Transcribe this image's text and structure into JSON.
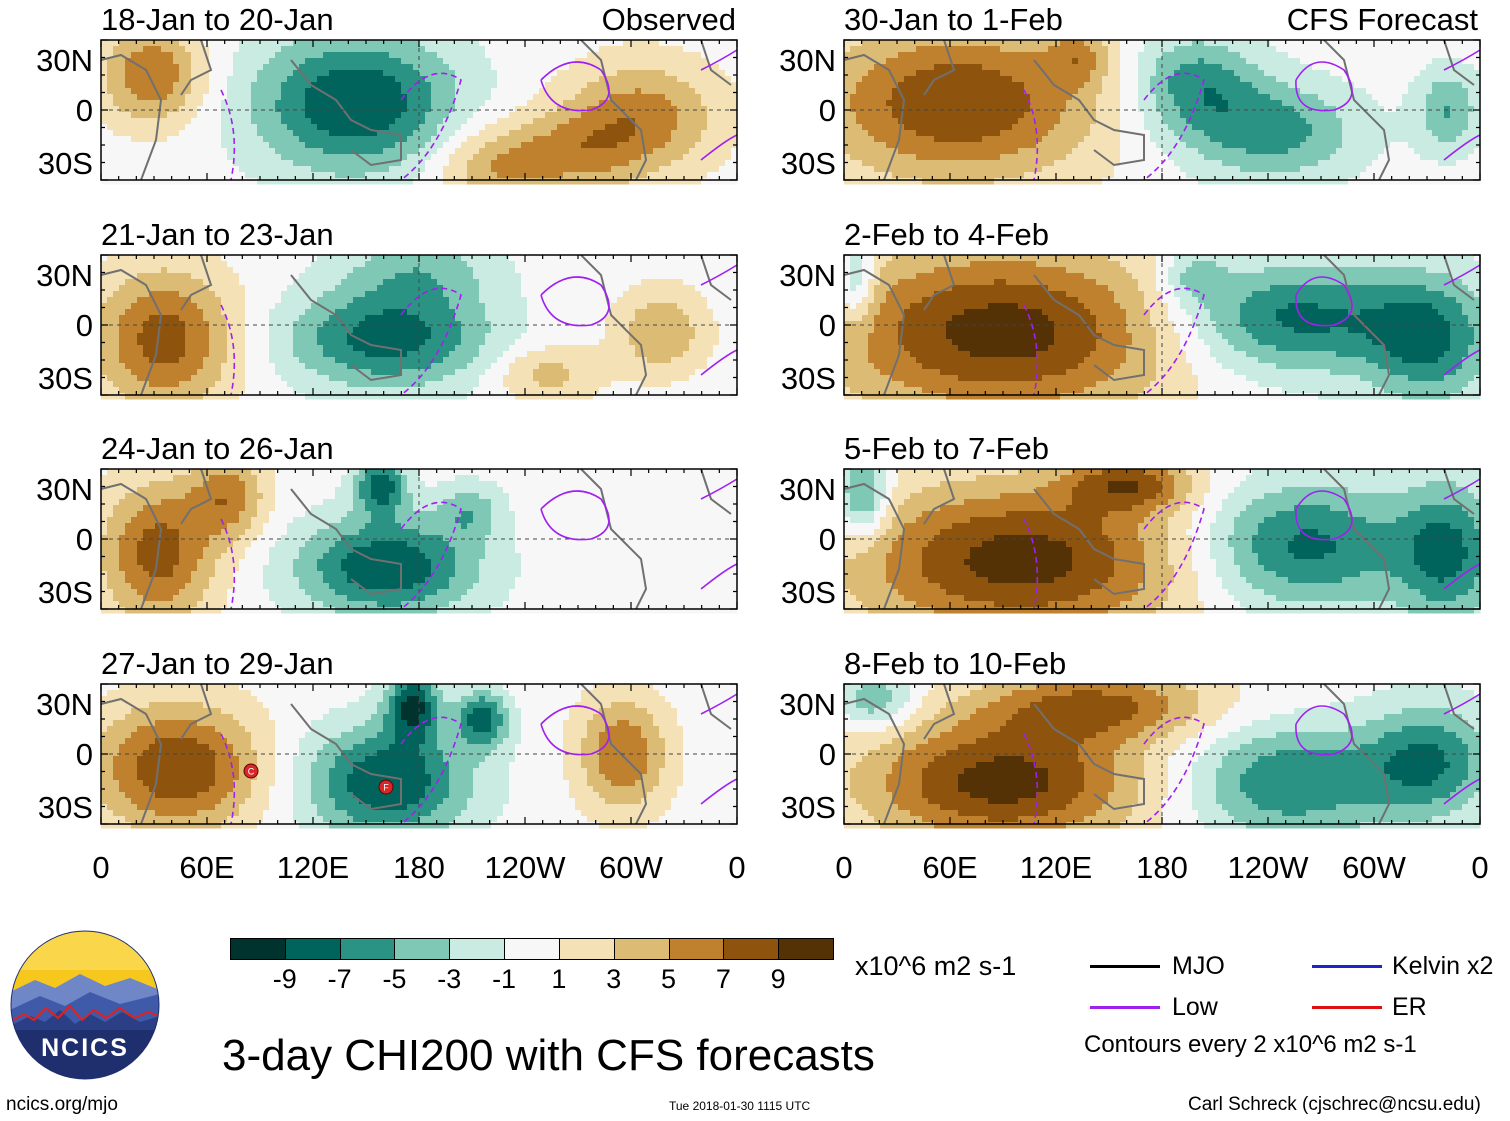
{
  "chart_data": {
    "type": "heatmap",
    "title": "3-day CHI200 with CFS forecasts",
    "units": "x10^6 m2 s-1",
    "left_column_label": "Observed",
    "right_column_label": "CFS Forecast",
    "y_ticks": [
      "30N",
      "0",
      "30S"
    ],
    "x_ticks": [
      "0",
      "60E",
      "120E",
      "180",
      "120W",
      "60W",
      "0"
    ],
    "colorbar": {
      "ticks": [
        "-9",
        "-7",
        "-5",
        "-3",
        "-1",
        "1",
        "3",
        "5",
        "7",
        "9"
      ],
      "colors": [
        "#00332e",
        "#00645c",
        "#2b9384",
        "#7fc8b5",
        "#c9ebe1",
        "#f7f7f7",
        "#f4e2b6",
        "#dcbc74",
        "#bf812e",
        "#8e540d",
        "#553205"
      ]
    },
    "panels": [
      {
        "label": "18-Jan to 20-Jan",
        "type": "Observed"
      },
      {
        "label": "21-Jan to 23-Jan",
        "type": "Observed"
      },
      {
        "label": "24-Jan to 26-Jan",
        "type": "Observed"
      },
      {
        "label": "27-Jan to 29-Jan",
        "type": "Observed"
      },
      {
        "label": "30-Jan to 1-Feb",
        "type": "CFS Forecast"
      },
      {
        "label": "2-Feb to 4-Feb",
        "type": "CFS Forecast"
      },
      {
        "label": "5-Feb to 7-Feb",
        "type": "CFS Forecast"
      },
      {
        "label": "8-Feb to 10-Feb",
        "type": "CFS Forecast"
      }
    ],
    "legend": [
      {
        "name": "MJO",
        "color": "#000000"
      },
      {
        "name": "Kelvin x2",
        "color": "#2222cc"
      },
      {
        "name": "Low",
        "color": "#a020f0"
      },
      {
        "name": "ER",
        "color": "#dd1111"
      }
    ],
    "contour_note": "Contours every 2 x10^6 m2 s-1",
    "storm_markers": [
      "C",
      "F"
    ]
  },
  "footer": {
    "logo_text": "NCICS",
    "website": "ncics.org/mjo",
    "timestamp": "Tue 2018-01-30 1115 UTC",
    "author": "Carl Schreck (cjschrec@ncsu.edu)"
  }
}
